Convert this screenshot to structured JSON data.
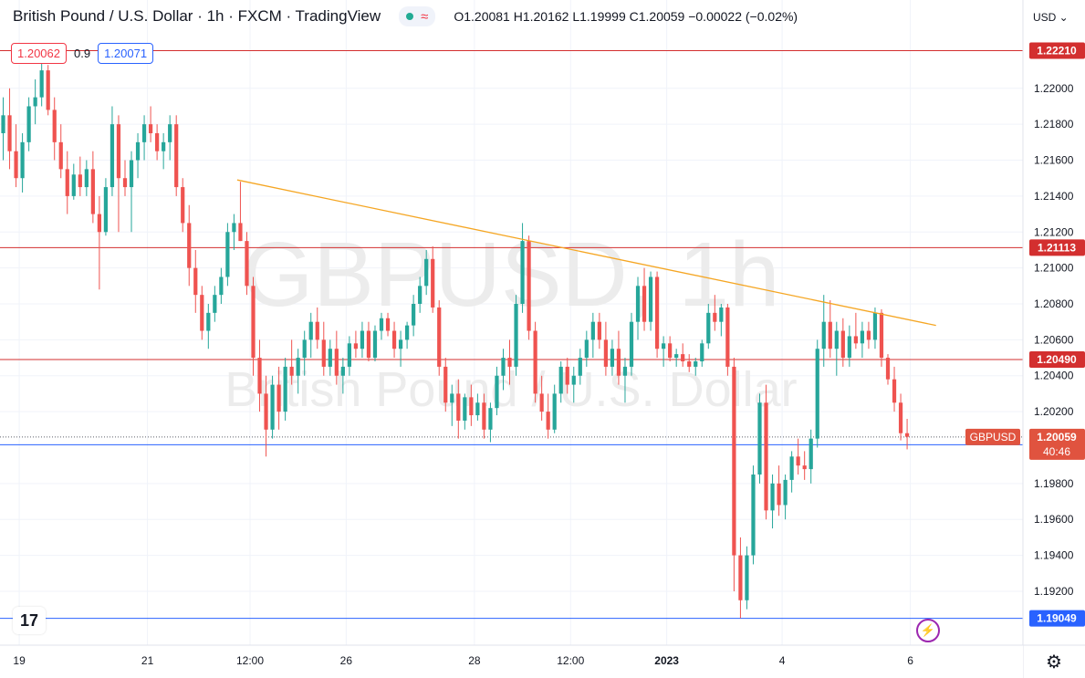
{
  "header": {
    "title": "British Pound / U.S. Dollar · 1h · FXCM · TradingView",
    "ohlc": "O1.20081 H1.20162 L1.19999 C1.20059 −0.00022 (−0.02%)",
    "bid": "1.20062",
    "spread": "0.9",
    "ask": "1.20071",
    "currency": "USD"
  },
  "watermark": {
    "symbol": "GBPUSD, 1h",
    "name": "British Pound / U.S. Dollar"
  },
  "colors": {
    "up": "#26a69a",
    "down": "#ef5350",
    "candle_up_fill": "#26a69a",
    "candle_down_fill": "#ef5350",
    "resistance_line": "#d32f2f",
    "support_line": "#2962ff",
    "trendline": "#f5a623",
    "grid": "#f0f3fa",
    "last_price_label": "#e0533f"
  },
  "chart_data": {
    "type": "candlestick",
    "symbol": "GBPUSD",
    "interval": "1h",
    "y_axis": {
      "range": [
        1.189,
        1.2238
      ],
      "ticks": [
        "1.22000",
        "1.21800",
        "1.21600",
        "1.21400",
        "1.21200",
        "1.21000",
        "1.20800",
        "1.20600",
        "1.20400",
        "1.20200",
        "1.19800",
        "1.19600",
        "1.19400",
        "1.19200"
      ]
    },
    "x_axis": {
      "range": [
        0,
        158
      ],
      "ticks": [
        {
          "x": 3,
          "label": "19"
        },
        {
          "x": 23,
          "label": "21"
        },
        {
          "x": 39,
          "label": "12:00"
        },
        {
          "x": 54,
          "label": "26"
        },
        {
          "x": 74,
          "label": "28"
        },
        {
          "x": 89,
          "label": "12:00"
        },
        {
          "x": 104,
          "label": "2023"
        },
        {
          "x": 122,
          "label": "4"
        },
        {
          "x": 142,
          "label": "6"
        }
      ]
    },
    "horizontal_levels": [
      {
        "price": 1.2221,
        "label": "1.22210",
        "kind": "resistance"
      },
      {
        "price": 1.21113,
        "label": "1.21113",
        "kind": "resistance"
      },
      {
        "price": 1.2049,
        "label": "1.20490",
        "kind": "resistance"
      },
      {
        "price": 1.20016,
        "label": "1.20016",
        "kind": "support"
      },
      {
        "price": 1.19049,
        "label": "1.19049",
        "kind": "support"
      }
    ],
    "trendline": {
      "x1": 37,
      "y1": 1.2149,
      "x2": 146,
      "y2": 1.2068
    },
    "last_price": {
      "symbol": "GBPUSD",
      "price": "1.20059",
      "countdown": "40:46"
    },
    "candles": [
      [
        1.2175,
        1.2195,
        1.216,
        1.2185
      ],
      [
        1.2185,
        1.22,
        1.2155,
        1.2165
      ],
      [
        1.2165,
        1.218,
        1.2145,
        1.215
      ],
      [
        1.215,
        1.2175,
        1.2142,
        1.217
      ],
      [
        1.217,
        1.2195,
        1.2165,
        1.219
      ],
      [
        1.219,
        1.2205,
        1.218,
        1.2195
      ],
      [
        1.2195,
        1.2215,
        1.219,
        1.221
      ],
      [
        1.221,
        1.2213,
        1.2185,
        1.2188
      ],
      [
        1.2188,
        1.2195,
        1.216,
        1.217
      ],
      [
        1.217,
        1.218,
        1.215,
        1.2155
      ],
      [
        1.2155,
        1.2165,
        1.213,
        1.214
      ],
      [
        1.214,
        1.2158,
        1.2138,
        1.2152
      ],
      [
        1.2152,
        1.2162,
        1.214,
        1.2145
      ],
      [
        1.2145,
        1.216,
        1.214,
        1.2155
      ],
      [
        1.2155,
        1.2165,
        1.2125,
        1.213
      ],
      [
        1.213,
        1.214,
        1.2088,
        1.212
      ],
      [
        1.212,
        1.215,
        1.2118,
        1.2145
      ],
      [
        1.2145,
        1.219,
        1.214,
        1.218
      ],
      [
        1.218,
        1.2185,
        1.212,
        1.215
      ],
      [
        1.215,
        1.216,
        1.214,
        1.2145
      ],
      [
        1.2145,
        1.2165,
        1.212,
        1.216
      ],
      [
        1.216,
        1.2175,
        1.215,
        1.217
      ],
      [
        1.217,
        1.2185,
        1.216,
        1.218
      ],
      [
        1.218,
        1.219,
        1.217,
        1.2175
      ],
      [
        1.2175,
        1.218,
        1.216,
        1.2165
      ],
      [
        1.2165,
        1.2175,
        1.2155,
        1.217
      ],
      [
        1.217,
        1.2185,
        1.216,
        1.218
      ],
      [
        1.218,
        1.2185,
        1.214,
        1.2145
      ],
      [
        1.2145,
        1.215,
        1.212,
        1.2125
      ],
      [
        1.2125,
        1.2135,
        1.209,
        1.21
      ],
      [
        1.21,
        1.211,
        1.2075,
        1.2085
      ],
      [
        1.2085,
        1.209,
        1.206,
        1.2065
      ],
      [
        1.2065,
        1.208,
        1.2055,
        1.2075
      ],
      [
        1.2075,
        1.209,
        1.207,
        1.2085
      ],
      [
        1.2085,
        1.21,
        1.208,
        1.2095
      ],
      [
        1.2095,
        1.2125,
        1.209,
        1.212
      ],
      [
        1.212,
        1.213,
        1.211,
        1.2125
      ],
      [
        1.2125,
        1.2148,
        1.2115,
        1.2115
      ],
      [
        1.2115,
        1.212,
        1.2085,
        1.209
      ],
      [
        1.209,
        1.2095,
        1.204,
        1.205
      ],
      [
        1.205,
        1.206,
        1.202,
        1.203
      ],
      [
        1.203,
        1.204,
        1.1995,
        1.201
      ],
      [
        1.201,
        1.204,
        1.2005,
        1.2035
      ],
      [
        1.2035,
        1.2045,
        1.201,
        1.202
      ],
      [
        1.202,
        1.205,
        1.2015,
        1.2045
      ],
      [
        1.2045,
        1.206,
        1.2035,
        1.204
      ],
      [
        1.204,
        1.2055,
        1.203,
        1.205
      ],
      [
        1.205,
        1.2065,
        1.204,
        1.206
      ],
      [
        1.206,
        1.2075,
        1.205,
        1.207
      ],
      [
        1.207,
        1.2078,
        1.2055,
        1.206
      ],
      [
        1.206,
        1.207,
        1.204,
        1.2045
      ],
      [
        1.2045,
        1.206,
        1.204,
        1.2055
      ],
      [
        1.2055,
        1.2065,
        1.2035,
        1.204
      ],
      [
        1.204,
        1.205,
        1.203,
        1.2045
      ],
      [
        1.2045,
        1.2062,
        1.204,
        1.2058
      ],
      [
        1.2058,
        1.2065,
        1.205,
        1.2055
      ],
      [
        1.2055,
        1.207,
        1.205,
        1.2065
      ],
      [
        1.2065,
        1.207,
        1.2048,
        1.205
      ],
      [
        1.205,
        1.2068,
        1.2048,
        1.2065
      ],
      [
        1.2065,
        1.2075,
        1.206,
        1.2072
      ],
      [
        1.2072,
        1.2075,
        1.2062,
        1.2065
      ],
      [
        1.2065,
        1.207,
        1.205,
        1.2055
      ],
      [
        1.2055,
        1.2065,
        1.2045,
        1.206
      ],
      [
        1.206,
        1.207,
        1.2055,
        1.2068
      ],
      [
        1.2068,
        1.2085,
        1.2062,
        1.208
      ],
      [
        1.208,
        1.2095,
        1.2075,
        1.209
      ],
      [
        1.209,
        1.211,
        1.2085,
        1.2105
      ],
      [
        1.2105,
        1.2112,
        1.2075,
        1.2078
      ],
      [
        1.2078,
        1.2082,
        1.204,
        1.2045
      ],
      [
        1.2045,
        1.205,
        1.202,
        1.2025
      ],
      [
        1.2025,
        1.2035,
        1.2012,
        1.203
      ],
      [
        1.203,
        1.2038,
        1.2005,
        1.2015
      ],
      [
        1.2015,
        1.203,
        1.201,
        1.2028
      ],
      [
        1.2028,
        1.2035,
        1.2012,
        1.2018
      ],
      [
        1.2018,
        1.203,
        1.2015,
        1.2025
      ],
      [
        1.2025,
        1.203,
        1.2005,
        1.201
      ],
      [
        1.201,
        1.2025,
        1.2003,
        1.2022
      ],
      [
        1.2022,
        1.2045,
        1.2018,
        1.204
      ],
      [
        1.204,
        1.2055,
        1.2032,
        1.205
      ],
      [
        1.205,
        1.206,
        1.2035,
        1.2045
      ],
      [
        1.2045,
        1.2085,
        1.204,
        1.208
      ],
      [
        1.208,
        1.2125,
        1.2075,
        1.2115
      ],
      [
        1.2115,
        1.2118,
        1.206,
        1.2065
      ],
      [
        1.2065,
        1.207,
        1.2025,
        1.203
      ],
      [
        1.203,
        1.204,
        1.2015,
        1.202
      ],
      [
        1.202,
        1.203,
        1.2005,
        1.201
      ],
      [
        1.201,
        1.2035,
        1.2008,
        1.203
      ],
      [
        1.203,
        1.2048,
        1.2025,
        1.2045
      ],
      [
        1.2045,
        1.205,
        1.203,
        1.2035
      ],
      [
        1.2035,
        1.2045,
        1.2025,
        1.204
      ],
      [
        1.204,
        1.2055,
        1.2035,
        1.205
      ],
      [
        1.205,
        1.2065,
        1.2045,
        1.206
      ],
      [
        1.206,
        1.2075,
        1.205,
        1.207
      ],
      [
        1.207,
        1.2075,
        1.2055,
        1.206
      ],
      [
        1.206,
        1.207,
        1.204,
        1.2045
      ],
      [
        1.2045,
        1.206,
        1.204,
        1.2055
      ],
      [
        1.2055,
        1.2065,
        1.2035,
        1.204
      ],
      [
        1.204,
        1.205,
        1.2025,
        1.2045
      ],
      [
        1.2045,
        1.2075,
        1.204,
        1.207
      ],
      [
        1.207,
        1.2095,
        1.206,
        1.209
      ],
      [
        1.209,
        1.21,
        1.2065,
        1.207
      ],
      [
        1.207,
        1.2098,
        1.2065,
        1.2095
      ],
      [
        1.2095,
        1.2098,
        1.205,
        1.2055
      ],
      [
        1.2055,
        1.2062,
        1.2045,
        1.2058
      ],
      [
        1.2058,
        1.2062,
        1.2048,
        1.205
      ],
      [
        1.205,
        1.2055,
        1.2045,
        1.2052
      ],
      [
        1.2052,
        1.2058,
        1.2045,
        1.2048
      ],
      [
        1.2048,
        1.2052,
        1.2042,
        1.2045
      ],
      [
        1.2045,
        1.205,
        1.204,
        1.2048
      ],
      [
        1.2048,
        1.206,
        1.2045,
        1.2058
      ],
      [
        1.2058,
        1.208,
        1.2055,
        1.2075
      ],
      [
        1.2075,
        1.2085,
        1.2065,
        1.207
      ],
      [
        1.207,
        1.208,
        1.2062,
        1.2078
      ],
      [
        1.2078,
        1.208,
        1.204,
        1.2045
      ],
      [
        1.2045,
        1.205,
        1.192,
        1.194
      ],
      [
        1.194,
        1.195,
        1.1905,
        1.1915
      ],
      [
        1.1915,
        1.1945,
        1.191,
        1.194
      ],
      [
        1.194,
        1.199,
        1.1935,
        1.1985
      ],
      [
        1.1985,
        1.203,
        1.198,
        1.2025
      ],
      [
        1.2025,
        1.2035,
        1.196,
        1.1965
      ],
      [
        1.1965,
        1.1985,
        1.1955,
        1.198
      ],
      [
        1.198,
        1.199,
        1.1962,
        1.1968
      ],
      [
        1.1968,
        1.1985,
        1.196,
        1.1982
      ],
      [
        1.1982,
        1.1998,
        1.1975,
        1.1995
      ],
      [
        1.1995,
        1.2005,
        1.1985,
        1.199
      ],
      [
        1.199,
        1.1998,
        1.1982,
        1.1988
      ],
      [
        1.1988,
        1.201,
        1.198,
        1.2005
      ],
      [
        1.2005,
        1.206,
        1.2,
        1.2055
      ],
      [
        1.2055,
        1.2085,
        1.2045,
        1.207
      ],
      [
        1.207,
        1.2082,
        1.205,
        1.2055
      ],
      [
        1.2055,
        1.207,
        1.204,
        1.2065
      ],
      [
        1.2065,
        1.2072,
        1.2045,
        1.205
      ],
      [
        1.205,
        1.2068,
        1.2045,
        1.2062
      ],
      [
        1.2062,
        1.2075,
        1.2055,
        1.2058
      ],
      [
        1.2058,
        1.207,
        1.205,
        1.2065
      ],
      [
        1.2065,
        1.207,
        1.2055,
        1.206
      ],
      [
        1.206,
        1.2078,
        1.2055,
        1.2075
      ],
      [
        1.2075,
        1.2077,
        1.2045,
        1.205
      ],
      [
        1.205,
        1.2052,
        1.2035,
        1.2038
      ],
      [
        1.2038,
        1.2045,
        1.202,
        1.2025
      ],
      [
        1.2025,
        1.203,
        1.2004,
        1.2008
      ],
      [
        1.2008,
        1.2016,
        1.1999,
        1.2006
      ]
    ]
  }
}
